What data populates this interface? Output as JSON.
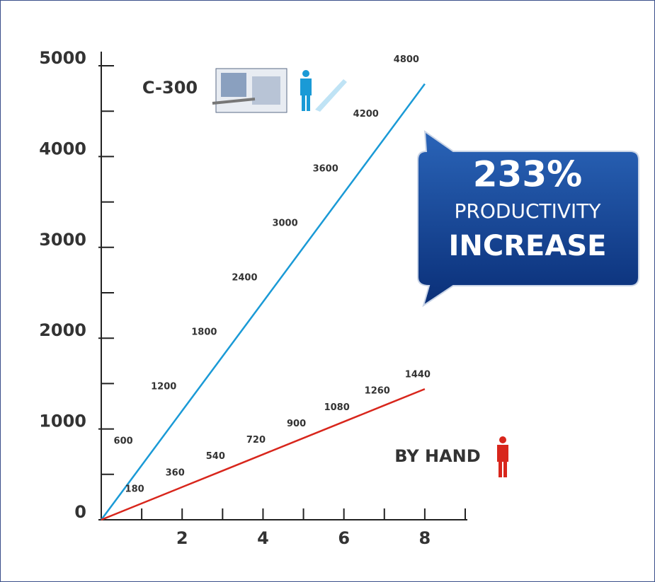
{
  "chart_data": {
    "type": "line",
    "x": [
      0,
      1,
      2,
      3,
      4,
      5,
      6,
      7,
      8
    ],
    "series": [
      {
        "name": "C-300",
        "color": "#1a9ad6",
        "values": [
          0,
          600,
          1200,
          1800,
          2400,
          3000,
          3600,
          4200,
          4800
        ]
      },
      {
        "name": "BY HAND",
        "color": "#d8261c",
        "values": [
          0,
          180,
          360,
          540,
          720,
          900,
          1080,
          1260,
          1440
        ]
      }
    ],
    "xlim": [
      0,
      9
    ],
    "xticks": [
      2,
      4,
      6,
      8
    ],
    "xminor_ticks": [
      1,
      3,
      5,
      7,
      9
    ],
    "ylim": [
      0,
      5000
    ],
    "yticks": [
      0,
      1000,
      2000,
      3000,
      4000,
      5000
    ],
    "yminor_ticks": [
      500,
      1500,
      2500,
      3500,
      4500
    ],
    "annotation": {
      "percent": "233%",
      "line1": "PRODUCTIVITY",
      "line2": "INCREASE"
    }
  }
}
